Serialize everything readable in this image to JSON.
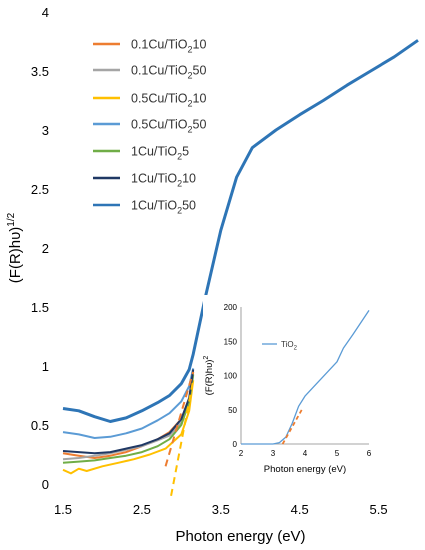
{
  "chart_data": [
    {
      "type": "line",
      "xlabel": "Photon energy (eV)",
      "ylabel": "(F(R)hυ)^1/2",
      "ylabel_parts": {
        "base": "(F(R)hυ)",
        "sup": "1/2"
      },
      "xlim": [
        1.5,
        6.0
      ],
      "ylim": [
        0,
        4
      ],
      "x_ticks": [
        "1.5",
        "2.5",
        "3.5",
        "4.5",
        "5.5"
      ],
      "x_tick_values": [
        1.5,
        2.5,
        3.5,
        4.5,
        5.5
      ],
      "y_ticks": [
        "0",
        "0.5",
        "1",
        "1.5",
        "2",
        "2.5",
        "3",
        "3.5",
        "4"
      ],
      "y_tick_values": [
        0,
        0.5,
        1,
        1.5,
        2,
        2.5,
        3,
        3.5,
        4
      ],
      "legend_position": "top-left",
      "series": [
        {
          "name": "0.1Cu/TiO210",
          "legend": {
            "pre": "0.1Cu/TiO",
            "sub": "2",
            "post": "10"
          },
          "color": "#ED7D31",
          "x": [
            1.5,
            1.7,
            1.9,
            2.1,
            2.3,
            2.5,
            2.7,
            2.85,
            3.0,
            3.1,
            3.15
          ],
          "y": [
            0.26,
            0.24,
            0.22,
            0.24,
            0.27,
            0.32,
            0.38,
            0.44,
            0.55,
            0.72,
            0.95
          ]
        },
        {
          "name": "0.1Cu/TiO250",
          "legend": {
            "pre": "0.1Cu/TiO",
            "sub": "2",
            "post": "50"
          },
          "color": "#A5A5A5",
          "x": [
            1.5,
            1.7,
            1.9,
            2.1,
            2.3,
            2.5,
            2.7,
            2.85,
            3.0,
            3.1,
            3.15
          ],
          "y": [
            0.21,
            0.22,
            0.24,
            0.26,
            0.29,
            0.32,
            0.37,
            0.41,
            0.52,
            0.68,
            0.92
          ]
        },
        {
          "name": "0.5Cu/TiO210",
          "legend": {
            "pre": "0.5Cu/TiO",
            "sub": "2",
            "post": "10"
          },
          "color": "#FFC000",
          "x": [
            1.5,
            1.6,
            1.7,
            1.8,
            2.0,
            2.2,
            2.4,
            2.6,
            2.8,
            3.0,
            3.1,
            3.15
          ],
          "y": [
            0.12,
            0.09,
            0.13,
            0.11,
            0.15,
            0.18,
            0.21,
            0.25,
            0.3,
            0.42,
            0.62,
            0.88
          ]
        },
        {
          "name": "0.5Cu/TiO250",
          "legend": {
            "pre": "0.5Cu/TiO",
            "sub": "2",
            "post": "50"
          },
          "color": "#5B9BD5",
          "x": [
            1.5,
            1.7,
            1.9,
            2.1,
            2.3,
            2.5,
            2.7,
            2.85,
            3.0,
            3.1,
            3.15
          ],
          "y": [
            0.44,
            0.42,
            0.39,
            0.4,
            0.43,
            0.47,
            0.54,
            0.6,
            0.7,
            0.83,
            0.98
          ]
        },
        {
          "name": "1Cu/TiO25",
          "legend": {
            "pre": "1Cu/TiO",
            "sub": "2",
            "post": "5"
          },
          "color": "#70AD47",
          "x": [
            1.5,
            1.7,
            1.9,
            2.1,
            2.3,
            2.5,
            2.7,
            2.85,
            3.0,
            3.1,
            3.15
          ],
          "y": [
            0.18,
            0.19,
            0.2,
            0.22,
            0.24,
            0.27,
            0.32,
            0.38,
            0.5,
            0.7,
            0.93
          ]
        },
        {
          "name": "1Cu/TiO210",
          "legend": {
            "pre": "1Cu/TiO",
            "sub": "2",
            "post": "10"
          },
          "color": "#1F3864",
          "x": [
            1.5,
            1.7,
            1.9,
            2.1,
            2.3,
            2.5,
            2.7,
            2.85,
            3.0,
            3.1,
            3.15
          ],
          "y": [
            0.28,
            0.27,
            0.26,
            0.27,
            0.3,
            0.33,
            0.38,
            0.43,
            0.55,
            0.73,
            0.97
          ]
        },
        {
          "name": "1Cu/TiO250",
          "legend": {
            "pre": "1Cu/TiO",
            "sub": "2",
            "post": "50"
          },
          "color": "#2E75B6",
          "x": [
            1.5,
            1.7,
            1.9,
            2.1,
            2.3,
            2.5,
            2.7,
            2.85,
            3.0,
            3.1,
            3.15,
            3.3,
            3.5,
            3.7,
            3.9,
            4.2,
            4.5,
            4.8,
            5.1,
            5.4,
            5.7,
            6.0
          ],
          "y": [
            0.64,
            0.62,
            0.57,
            0.53,
            0.56,
            0.62,
            0.69,
            0.75,
            0.85,
            0.97,
            1.1,
            1.57,
            2.15,
            2.6,
            2.85,
            3.0,
            3.13,
            3.25,
            3.38,
            3.5,
            3.62,
            3.76
          ]
        }
      ],
      "tangent_lines": [
        {
          "color": "#ED7D31",
          "x": [
            2.8,
            3.15
          ],
          "y": [
            0.15,
            0.95
          ]
        },
        {
          "color": "#FFC000",
          "x": [
            2.87,
            3.15
          ],
          "y": [
            -0.1,
            0.88
          ]
        }
      ]
    },
    {
      "type": "line",
      "xlabel": "Photon energy (eV)",
      "ylabel": "(F(R)hυ)^2",
      "ylabel_parts": {
        "base": "(F(R)hυ)",
        "sup": "2"
      },
      "xlim": [
        2,
        6
      ],
      "ylim": [
        0,
        200
      ],
      "x_ticks": [
        "2",
        "3",
        "4",
        "5",
        "6"
      ],
      "x_tick_values": [
        2,
        3,
        4,
        5,
        6
      ],
      "y_ticks": [
        "0",
        "50",
        "100",
        "150",
        "200"
      ],
      "y_tick_values": [
        0,
        50,
        100,
        150,
        200
      ],
      "legend_position": "top-left",
      "series": [
        {
          "name": "TiO2",
          "legend": {
            "pre": "TiO",
            "sub": "2",
            "post": ""
          },
          "color": "#5B9BD5",
          "x": [
            2.0,
            3.0,
            3.2,
            3.4,
            3.6,
            3.8,
            4.0,
            4.5,
            5.0,
            5.2,
            5.5,
            6.0
          ],
          "y": [
            0,
            0,
            2,
            10,
            30,
            55,
            70,
            95,
            120,
            140,
            160,
            195
          ]
        }
      ],
      "tangent_lines": [
        {
          "color": "#ED7D31",
          "x": [
            3.3,
            3.9
          ],
          "y": [
            0,
            50
          ]
        }
      ]
    }
  ]
}
